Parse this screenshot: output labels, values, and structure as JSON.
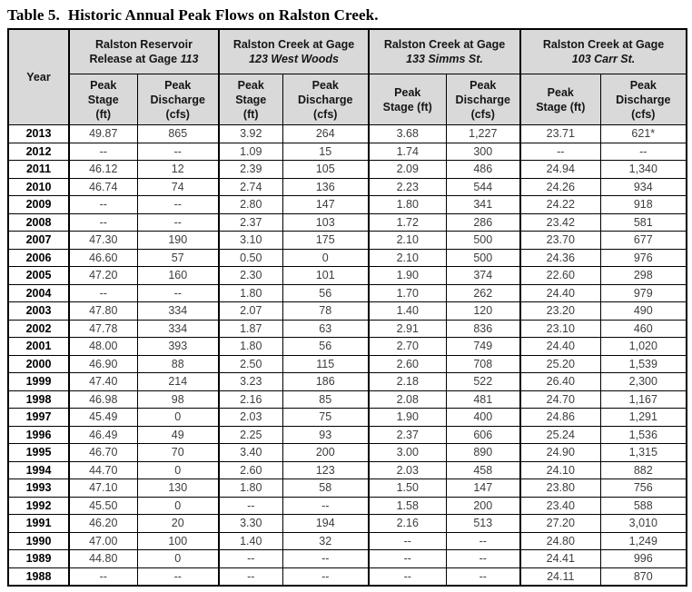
{
  "title": {
    "label": "Table 5.",
    "caption": "Historic Annual Peak Flows on Ralston Creek."
  },
  "colors": {
    "header_background": "#d9d9d9",
    "border": "#000000",
    "data_text": "#3d3d3d"
  },
  "table": {
    "year_header": "Year",
    "groups": [
      {
        "line1": "Ralston Reservoir",
        "line2_plain": "Release at Gage ",
        "line2_italic": "113"
      },
      {
        "line1": "Ralston Creek at Gage",
        "line2_plain": "",
        "line2_italic": "123 West Woods"
      },
      {
        "line1": "Ralston Creek at Gage",
        "line2_plain": "",
        "line2_italic": "133 Simms St."
      },
      {
        "line1": "Ralston Creek at Gage",
        "line2_plain": "",
        "line2_italic": "103 Carr St."
      }
    ],
    "sub_headers": [
      "Peak\nStage\n(ft)",
      "Peak\nDischarge\n(cfs)",
      "Peak\nStage\n(ft)",
      "Peak\nDischarge\n(cfs)",
      "Peak\nStage (ft)",
      "Peak\nDischarge\n(cfs)",
      "Peak\nStage (ft)",
      "Peak\nDischarge\n(cfs)"
    ],
    "rows": [
      [
        "2013",
        "49.87",
        "865",
        "3.92",
        "264",
        "3.68",
        "1,227",
        "23.71",
        "621*"
      ],
      [
        "2012",
        "--",
        "--",
        "1.09",
        "15",
        "1.74",
        "300",
        "--",
        "--"
      ],
      [
        "2011",
        "46.12",
        "12",
        "2.39",
        "105",
        "2.09",
        "486",
        "24.94",
        "1,340"
      ],
      [
        "2010",
        "46.74",
        "74",
        "2.74",
        "136",
        "2.23",
        "544",
        "24.26",
        "934"
      ],
      [
        "2009",
        "--",
        "--",
        "2.80",
        "147",
        "1.80",
        "341",
        "24.22",
        "918"
      ],
      [
        "2008",
        "--",
        "--",
        "2.37",
        "103",
        "1.72",
        "286",
        "23.42",
        "581"
      ],
      [
        "2007",
        "47.30",
        "190",
        "3.10",
        "175",
        "2.10",
        "500",
        "23.70",
        "677"
      ],
      [
        "2006",
        "46.60",
        "57",
        "0.50",
        "0",
        "2.10",
        "500",
        "24.36",
        "976"
      ],
      [
        "2005",
        "47.20",
        "160",
        "2.30",
        "101",
        "1.90",
        "374",
        "22.60",
        "298"
      ],
      [
        "2004",
        "--",
        "--",
        "1.80",
        "56",
        "1.70",
        "262",
        "24.40",
        "979"
      ],
      [
        "2003",
        "47.80",
        "334",
        "2.07",
        "78",
        "1.40",
        "120",
        "23.20",
        "490"
      ],
      [
        "2002",
        "47.78",
        "334",
        "1.87",
        "63",
        "2.91",
        "836",
        "23.10",
        "460"
      ],
      [
        "2001",
        "48.00",
        "393",
        "1.80",
        "56",
        "2.70",
        "749",
        "24.40",
        "1,020"
      ],
      [
        "2000",
        "46.90",
        "88",
        "2.50",
        "115",
        "2.60",
        "708",
        "25.20",
        "1,539"
      ],
      [
        "1999",
        "47.40",
        "214",
        "3.23",
        "186",
        "2.18",
        "522",
        "26.40",
        "2,300"
      ],
      [
        "1998",
        "46.98",
        "98",
        "2.16",
        "85",
        "2.08",
        "481",
        "24.70",
        "1,167"
      ],
      [
        "1997",
        "45.49",
        "0",
        "2.03",
        "75",
        "1.90",
        "400",
        "24.86",
        "1,291"
      ],
      [
        "1996",
        "46.49",
        "49",
        "2.25",
        "93",
        "2.37",
        "606",
        "25.24",
        "1,536"
      ],
      [
        "1995",
        "46.70",
        "70",
        "3.40",
        "200",
        "3.00",
        "890",
        "24.90",
        "1,315"
      ],
      [
        "1994",
        "44.70",
        "0",
        "2.60",
        "123",
        "2.03",
        "458",
        "24.10",
        "882"
      ],
      [
        "1993",
        "47.10",
        "130",
        "1.80",
        "58",
        "1.50",
        "147",
        "23.80",
        "756"
      ],
      [
        "1992",
        "45.50",
        "0",
        "--",
        "--",
        "1.58",
        "200",
        "23.40",
        "588"
      ],
      [
        "1991",
        "46.20",
        "20",
        "3.30",
        "194",
        "2.16",
        "513",
        "27.20",
        "3,010"
      ],
      [
        "1990",
        "47.00",
        "100",
        "1.40",
        "32",
        "--",
        "--",
        "24.80",
        "1,249"
      ],
      [
        "1989",
        "44.80",
        "0",
        "--",
        "--",
        "--",
        "--",
        "24.41",
        "996"
      ],
      [
        "1988",
        "--",
        "--",
        "--",
        "--",
        "--",
        "--",
        "24.11",
        "870"
      ]
    ]
  }
}
